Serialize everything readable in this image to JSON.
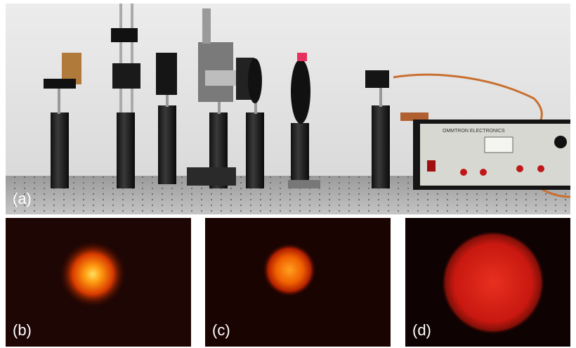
{
  "panels": [
    {
      "label": "(a)"
    },
    {
      "label": "(b)"
    },
    {
      "label": "(c)"
    },
    {
      "label": "(d)"
    }
  ],
  "device_label": "OMMTRON ELECTRONICS"
}
